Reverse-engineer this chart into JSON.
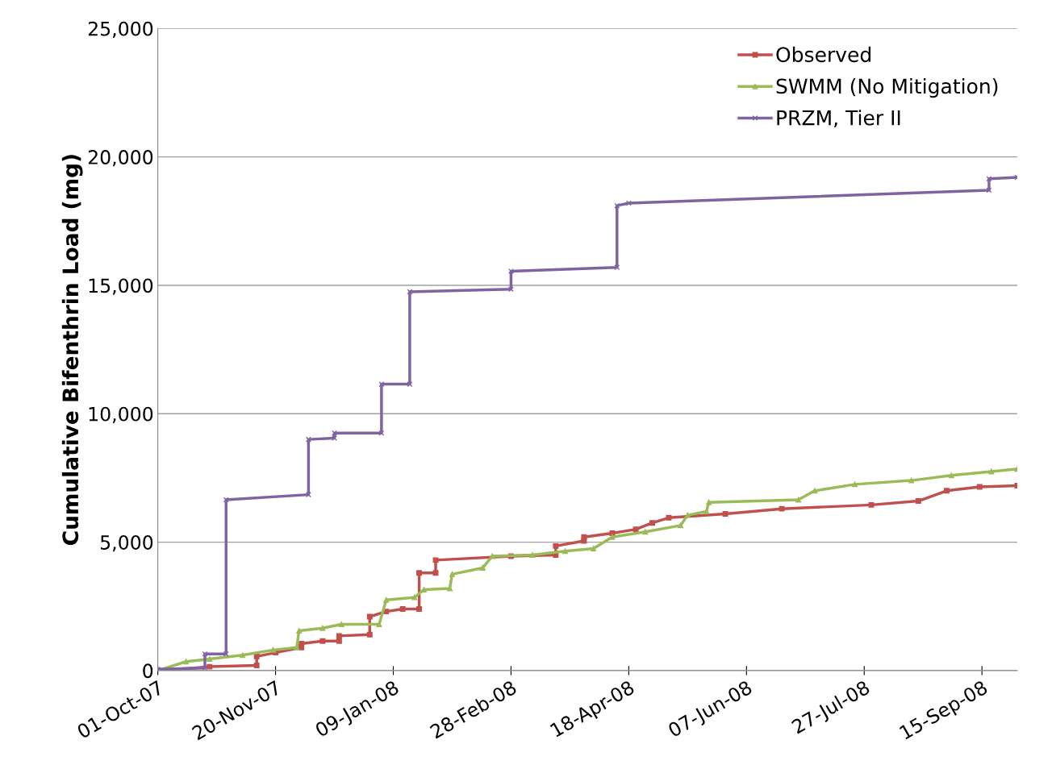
{
  "chart_data": {
    "type": "line",
    "ylabel": "Cumulative Bifenthrin Load (mg)",
    "xlim": [
      "2007-10-01",
      "2008-09-30"
    ],
    "xticks": [
      {
        "value": "2007-10-01",
        "label": "01-Oct-07"
      },
      {
        "value": "2007-11-20",
        "label": "20-Nov-07"
      },
      {
        "value": "2008-01-09",
        "label": "09-Jan-08"
      },
      {
        "value": "2008-02-28",
        "label": "28-Feb-08"
      },
      {
        "value": "2008-04-18",
        "label": "18-Apr-08"
      },
      {
        "value": "2008-06-07",
        "label": "07-Jun-08"
      },
      {
        "value": "2008-07-27",
        "label": "27-Jul-08"
      },
      {
        "value": "2008-09-15",
        "label": "15-Sep-08"
      }
    ],
    "ylim": [
      0,
      25000
    ],
    "yticks": [
      {
        "value": 0,
        "label": "0"
      },
      {
        "value": 5000,
        "label": "5,000"
      },
      {
        "value": 10000,
        "label": "10,000"
      },
      {
        "value": 15000,
        "label": "15,000"
      },
      {
        "value": 20000,
        "label": "20,000"
      },
      {
        "value": 25000,
        "label": "25,000"
      }
    ],
    "grid": "y",
    "legend": "top right",
    "series": [
      {
        "name": "Observed",
        "color": "#c0504d",
        "marker": "square",
        "x": [
          "2007-10-01",
          "2007-10-23",
          "2007-11-12",
          "2007-11-12",
          "2007-11-20",
          "2007-12-01",
          "2007-12-01",
          "2007-12-10",
          "2007-12-17",
          "2007-12-17",
          "2007-12-30",
          "2007-12-30",
          "2008-01-06",
          "2008-01-13",
          "2008-01-20",
          "2008-01-20",
          "2008-01-27",
          "2008-01-27",
          "2008-02-28",
          "2008-03-18",
          "2008-03-18",
          "2008-03-30",
          "2008-03-30",
          "2008-04-11",
          "2008-04-21",
          "2008-04-28",
          "2008-05-05",
          "2008-05-29",
          "2008-06-22",
          "2008-07-30",
          "2008-08-19",
          "2008-08-31",
          "2008-09-14",
          "2008-09-30"
        ],
        "values": [
          0,
          150,
          200,
          550,
          700,
          900,
          1050,
          1150,
          1150,
          1350,
          1400,
          2100,
          2300,
          2400,
          2400,
          3800,
          3800,
          4300,
          4450,
          4500,
          4850,
          5050,
          5200,
          5350,
          5500,
          5750,
          5950,
          6100,
          6300,
          6450,
          6600,
          7000,
          7150,
          7200
        ]
      },
      {
        "name": "SWMM (No Mitigation)",
        "color": "#9bbb59",
        "marker": "triangle",
        "x": [
          "2007-10-01",
          "2007-10-13",
          "2007-10-23",
          "2007-11-06",
          "2007-11-19",
          "2007-11-29",
          "2007-11-30",
          "2007-12-10",
          "2007-12-18",
          "2008-01-03",
          "2008-01-06",
          "2008-01-18",
          "2008-01-22",
          "2008-02-02",
          "2008-02-03",
          "2008-02-16",
          "2008-02-20",
          "2008-03-08",
          "2008-03-22",
          "2008-04-03",
          "2008-04-11",
          "2008-04-25",
          "2008-05-10",
          "2008-05-13",
          "2008-05-21",
          "2008-05-22",
          "2008-06-29",
          "2008-07-06",
          "2008-07-23",
          "2008-08-16",
          "2008-09-02",
          "2008-09-19",
          "2008-09-30"
        ],
        "values": [
          0,
          350,
          450,
          600,
          800,
          900,
          1550,
          1650,
          1800,
          1800,
          2750,
          2850,
          3150,
          3200,
          3750,
          4000,
          4450,
          4500,
          4650,
          4750,
          5200,
          5400,
          5650,
          6050,
          6200,
          6550,
          6650,
          7000,
          7250,
          7400,
          7600,
          7750,
          7850
        ]
      },
      {
        "name": "PRZM, Tier II",
        "color": "#8064a2",
        "marker": "cross",
        "x": [
          "2007-10-01",
          "2007-10-21",
          "2007-10-21",
          "2007-10-30",
          "2007-10-30",
          "2007-12-04",
          "2007-12-04",
          "2007-12-15",
          "2007-12-15",
          "2008-01-04",
          "2008-01-04",
          "2008-01-16",
          "2008-01-16",
          "2008-02-28",
          "2008-02-28",
          "2008-04-13",
          "2008-04-13",
          "2008-04-18",
          "2008-09-18",
          "2008-09-18",
          "2008-09-30"
        ],
        "values": [
          50,
          100,
          650,
          650,
          6650,
          6850,
          9000,
          9050,
          9250,
          9250,
          11150,
          11150,
          14750,
          14850,
          15550,
          15700,
          18100,
          18200,
          18700,
          19150,
          19200
        ]
      }
    ]
  }
}
